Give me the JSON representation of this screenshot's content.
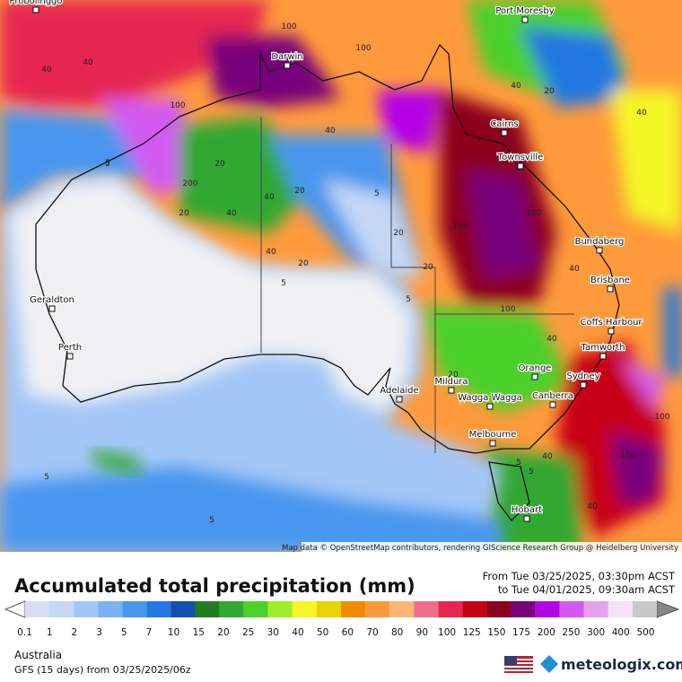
{
  "map": {
    "cities": [
      "Probolinggo",
      "Port Moresby",
      "Darwin",
      "Cairns",
      "Townsville",
      "Bundaberg",
      "Brisbane",
      "Geraldton",
      "Coffs Harbour",
      "Perth",
      "Tamworth",
      "Orange",
      "Sydney",
      "Mildura",
      "Adelaide",
      "Canberra",
      "Wagga Wagga",
      "Melbourne",
      "Hobart"
    ],
    "contour_labels": [
      "100",
      "40",
      "40",
      "20",
      "100",
      "200",
      "40",
      "20",
      "5",
      "40",
      "40",
      "20",
      "5",
      "40",
      "20",
      "5",
      "20",
      "5",
      "100",
      "20",
      "40",
      "100",
      "40",
      "100",
      "40",
      "20",
      "5",
      "5",
      "40",
      "100",
      "40",
      "100",
      "5",
      "5",
      "5",
      "40",
      "20",
      "100"
    ],
    "attribution": "Map data © OpenStreetMap contributors, rendering GIScience Research Group @ Heidelberg University"
  },
  "legend": {
    "title": "Accumulated total precipitation (mm)",
    "date_from": "From Tue 03/25/2025, 03:30pm ACST",
    "date_to": "to Tue 04/01/2025, 09:30am ACST",
    "items": [
      {
        "value": 0.1,
        "color": "#dcdcf0"
      },
      {
        "value": 1,
        "color": "#c4d8f6"
      },
      {
        "value": 2,
        "color": "#a2c6f6"
      },
      {
        "value": 3,
        "color": "#7ab2f4"
      },
      {
        "value": 5,
        "color": "#4a96ee"
      },
      {
        "value": 7,
        "color": "#2478e0"
      },
      {
        "value": 10,
        "color": "#1450b0"
      },
      {
        "value": 15,
        "color": "#1e7d1e"
      },
      {
        "value": 20,
        "color": "#32a832"
      },
      {
        "value": 25,
        "color": "#4cd02a"
      },
      {
        "value": 30,
        "color": "#a0ec28"
      },
      {
        "value": 40,
        "color": "#f5f528"
      },
      {
        "value": 50,
        "color": "#e6d200"
      },
      {
        "value": 60,
        "color": "#f08c00"
      },
      {
        "value": 70,
        "color": "#ff9a3c"
      },
      {
        "value": 80,
        "color": "#ffb478"
      },
      {
        "value": 90,
        "color": "#f06e8c"
      },
      {
        "value": 100,
        "color": "#e62850"
      },
      {
        "value": 125,
        "color": "#c80014"
      },
      {
        "value": 150,
        "color": "#8c001e"
      },
      {
        "value": 175,
        "color": "#78007c"
      },
      {
        "value": 200,
        "color": "#b400e6"
      },
      {
        "value": 250,
        "color": "#d25af0"
      },
      {
        "value": 300,
        "color": "#e6a0f0"
      },
      {
        "value": 400,
        "color": "#f5e2f5"
      },
      {
        "value": 500,
        "color": "#c8c8c8"
      }
    ]
  },
  "footer": {
    "region": "Australia",
    "model": "GFS (15 days) from  03/25/2025/06z",
    "brand": "meteologix.com"
  }
}
